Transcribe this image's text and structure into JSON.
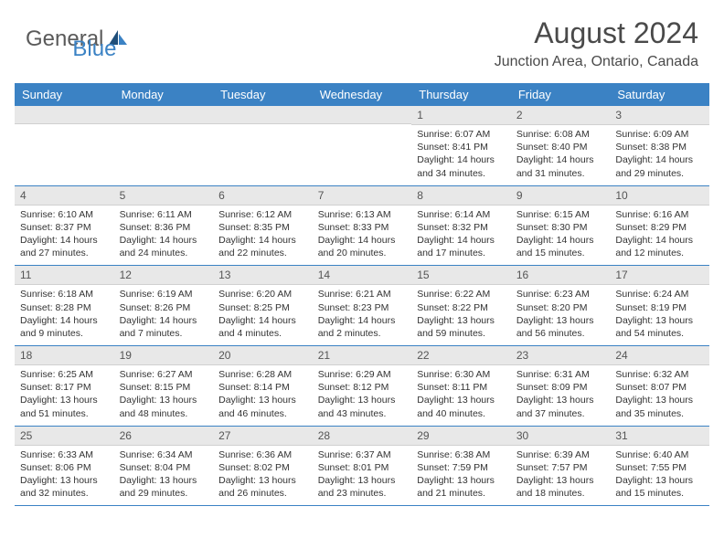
{
  "logo": {
    "general": "General",
    "blue": "Blue"
  },
  "title": "August 2024",
  "location": "Junction Area, Ontario, Canada",
  "colors": {
    "header_bg": "#3b82c4",
    "header_text": "#ffffff",
    "daynum_bg": "#e8e8e8",
    "border": "#3b82c4",
    "logo_gray": "#5a5a5a",
    "logo_blue": "#3b82c4"
  },
  "weekdays": [
    "Sunday",
    "Monday",
    "Tuesday",
    "Wednesday",
    "Thursday",
    "Friday",
    "Saturday"
  ],
  "weeks": [
    [
      null,
      null,
      null,
      null,
      {
        "n": "1",
        "sr": "6:07 AM",
        "ss": "8:41 PM",
        "dl": "14 hours and 34 minutes."
      },
      {
        "n": "2",
        "sr": "6:08 AM",
        "ss": "8:40 PM",
        "dl": "14 hours and 31 minutes."
      },
      {
        "n": "3",
        "sr": "6:09 AM",
        "ss": "8:38 PM",
        "dl": "14 hours and 29 minutes."
      }
    ],
    [
      {
        "n": "4",
        "sr": "6:10 AM",
        "ss": "8:37 PM",
        "dl": "14 hours and 27 minutes."
      },
      {
        "n": "5",
        "sr": "6:11 AM",
        "ss": "8:36 PM",
        "dl": "14 hours and 24 minutes."
      },
      {
        "n": "6",
        "sr": "6:12 AM",
        "ss": "8:35 PM",
        "dl": "14 hours and 22 minutes."
      },
      {
        "n": "7",
        "sr": "6:13 AM",
        "ss": "8:33 PM",
        "dl": "14 hours and 20 minutes."
      },
      {
        "n": "8",
        "sr": "6:14 AM",
        "ss": "8:32 PM",
        "dl": "14 hours and 17 minutes."
      },
      {
        "n": "9",
        "sr": "6:15 AM",
        "ss": "8:30 PM",
        "dl": "14 hours and 15 minutes."
      },
      {
        "n": "10",
        "sr": "6:16 AM",
        "ss": "8:29 PM",
        "dl": "14 hours and 12 minutes."
      }
    ],
    [
      {
        "n": "11",
        "sr": "6:18 AM",
        "ss": "8:28 PM",
        "dl": "14 hours and 9 minutes."
      },
      {
        "n": "12",
        "sr": "6:19 AM",
        "ss": "8:26 PM",
        "dl": "14 hours and 7 minutes."
      },
      {
        "n": "13",
        "sr": "6:20 AM",
        "ss": "8:25 PM",
        "dl": "14 hours and 4 minutes."
      },
      {
        "n": "14",
        "sr": "6:21 AM",
        "ss": "8:23 PM",
        "dl": "14 hours and 2 minutes."
      },
      {
        "n": "15",
        "sr": "6:22 AM",
        "ss": "8:22 PM",
        "dl": "13 hours and 59 minutes."
      },
      {
        "n": "16",
        "sr": "6:23 AM",
        "ss": "8:20 PM",
        "dl": "13 hours and 56 minutes."
      },
      {
        "n": "17",
        "sr": "6:24 AM",
        "ss": "8:19 PM",
        "dl": "13 hours and 54 minutes."
      }
    ],
    [
      {
        "n": "18",
        "sr": "6:25 AM",
        "ss": "8:17 PM",
        "dl": "13 hours and 51 minutes."
      },
      {
        "n": "19",
        "sr": "6:27 AM",
        "ss": "8:15 PM",
        "dl": "13 hours and 48 minutes."
      },
      {
        "n": "20",
        "sr": "6:28 AM",
        "ss": "8:14 PM",
        "dl": "13 hours and 46 minutes."
      },
      {
        "n": "21",
        "sr": "6:29 AM",
        "ss": "8:12 PM",
        "dl": "13 hours and 43 minutes."
      },
      {
        "n": "22",
        "sr": "6:30 AM",
        "ss": "8:11 PM",
        "dl": "13 hours and 40 minutes."
      },
      {
        "n": "23",
        "sr": "6:31 AM",
        "ss": "8:09 PM",
        "dl": "13 hours and 37 minutes."
      },
      {
        "n": "24",
        "sr": "6:32 AM",
        "ss": "8:07 PM",
        "dl": "13 hours and 35 minutes."
      }
    ],
    [
      {
        "n": "25",
        "sr": "6:33 AM",
        "ss": "8:06 PM",
        "dl": "13 hours and 32 minutes."
      },
      {
        "n": "26",
        "sr": "6:34 AM",
        "ss": "8:04 PM",
        "dl": "13 hours and 29 minutes."
      },
      {
        "n": "27",
        "sr": "6:36 AM",
        "ss": "8:02 PM",
        "dl": "13 hours and 26 minutes."
      },
      {
        "n": "28",
        "sr": "6:37 AM",
        "ss": "8:01 PM",
        "dl": "13 hours and 23 minutes."
      },
      {
        "n": "29",
        "sr": "6:38 AM",
        "ss": "7:59 PM",
        "dl": "13 hours and 21 minutes."
      },
      {
        "n": "30",
        "sr": "6:39 AM",
        "ss": "7:57 PM",
        "dl": "13 hours and 18 minutes."
      },
      {
        "n": "31",
        "sr": "6:40 AM",
        "ss": "7:55 PM",
        "dl": "13 hours and 15 minutes."
      }
    ]
  ],
  "labels": {
    "sunrise": "Sunrise:",
    "sunset": "Sunset:",
    "daylight": "Daylight:"
  }
}
